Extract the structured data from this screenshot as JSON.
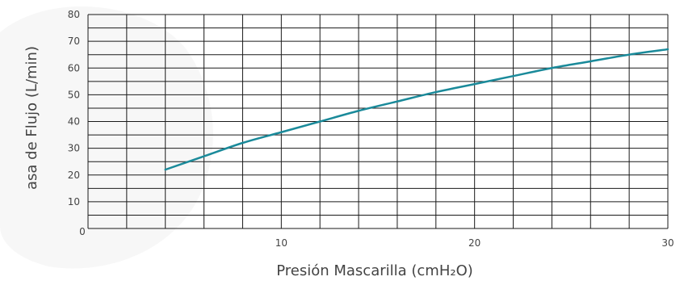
{
  "colors": {
    "line": "#1a8a9a",
    "grid": "#1a1a1a",
    "text": "#444444",
    "background_watermark": "#f2f2f2"
  },
  "chart_data": {
    "type": "line",
    "title": "",
    "xlabel": "Presión Mascarilla  (cmH₂O)",
    "ylabel": "asa de Flujo (L/min)",
    "xlim": [
      0,
      30
    ],
    "ylim": [
      0,
      80
    ],
    "x_ticks": [
      0,
      10,
      20,
      30
    ],
    "y_ticks": [
      0,
      10,
      20,
      30,
      40,
      50,
      60,
      70,
      80
    ],
    "x_tick_labels": [
      "0",
      "10",
      "20",
      "30"
    ],
    "y_tick_labels": [
      "0",
      "10",
      "20",
      "30",
      "40",
      "50",
      "60",
      "70",
      "80"
    ],
    "grid": true,
    "grid_x_step": 2,
    "grid_y_step": 5,
    "legend": "none",
    "series": [
      {
        "x": [
          4,
          6,
          8,
          10,
          12,
          14,
          16,
          18,
          20,
          22,
          24,
          26,
          28,
          30
        ],
        "y": [
          22,
          27,
          32,
          36,
          40,
          44,
          47.5,
          51,
          54,
          57,
          60,
          62.5,
          65,
          67
        ]
      }
    ]
  }
}
